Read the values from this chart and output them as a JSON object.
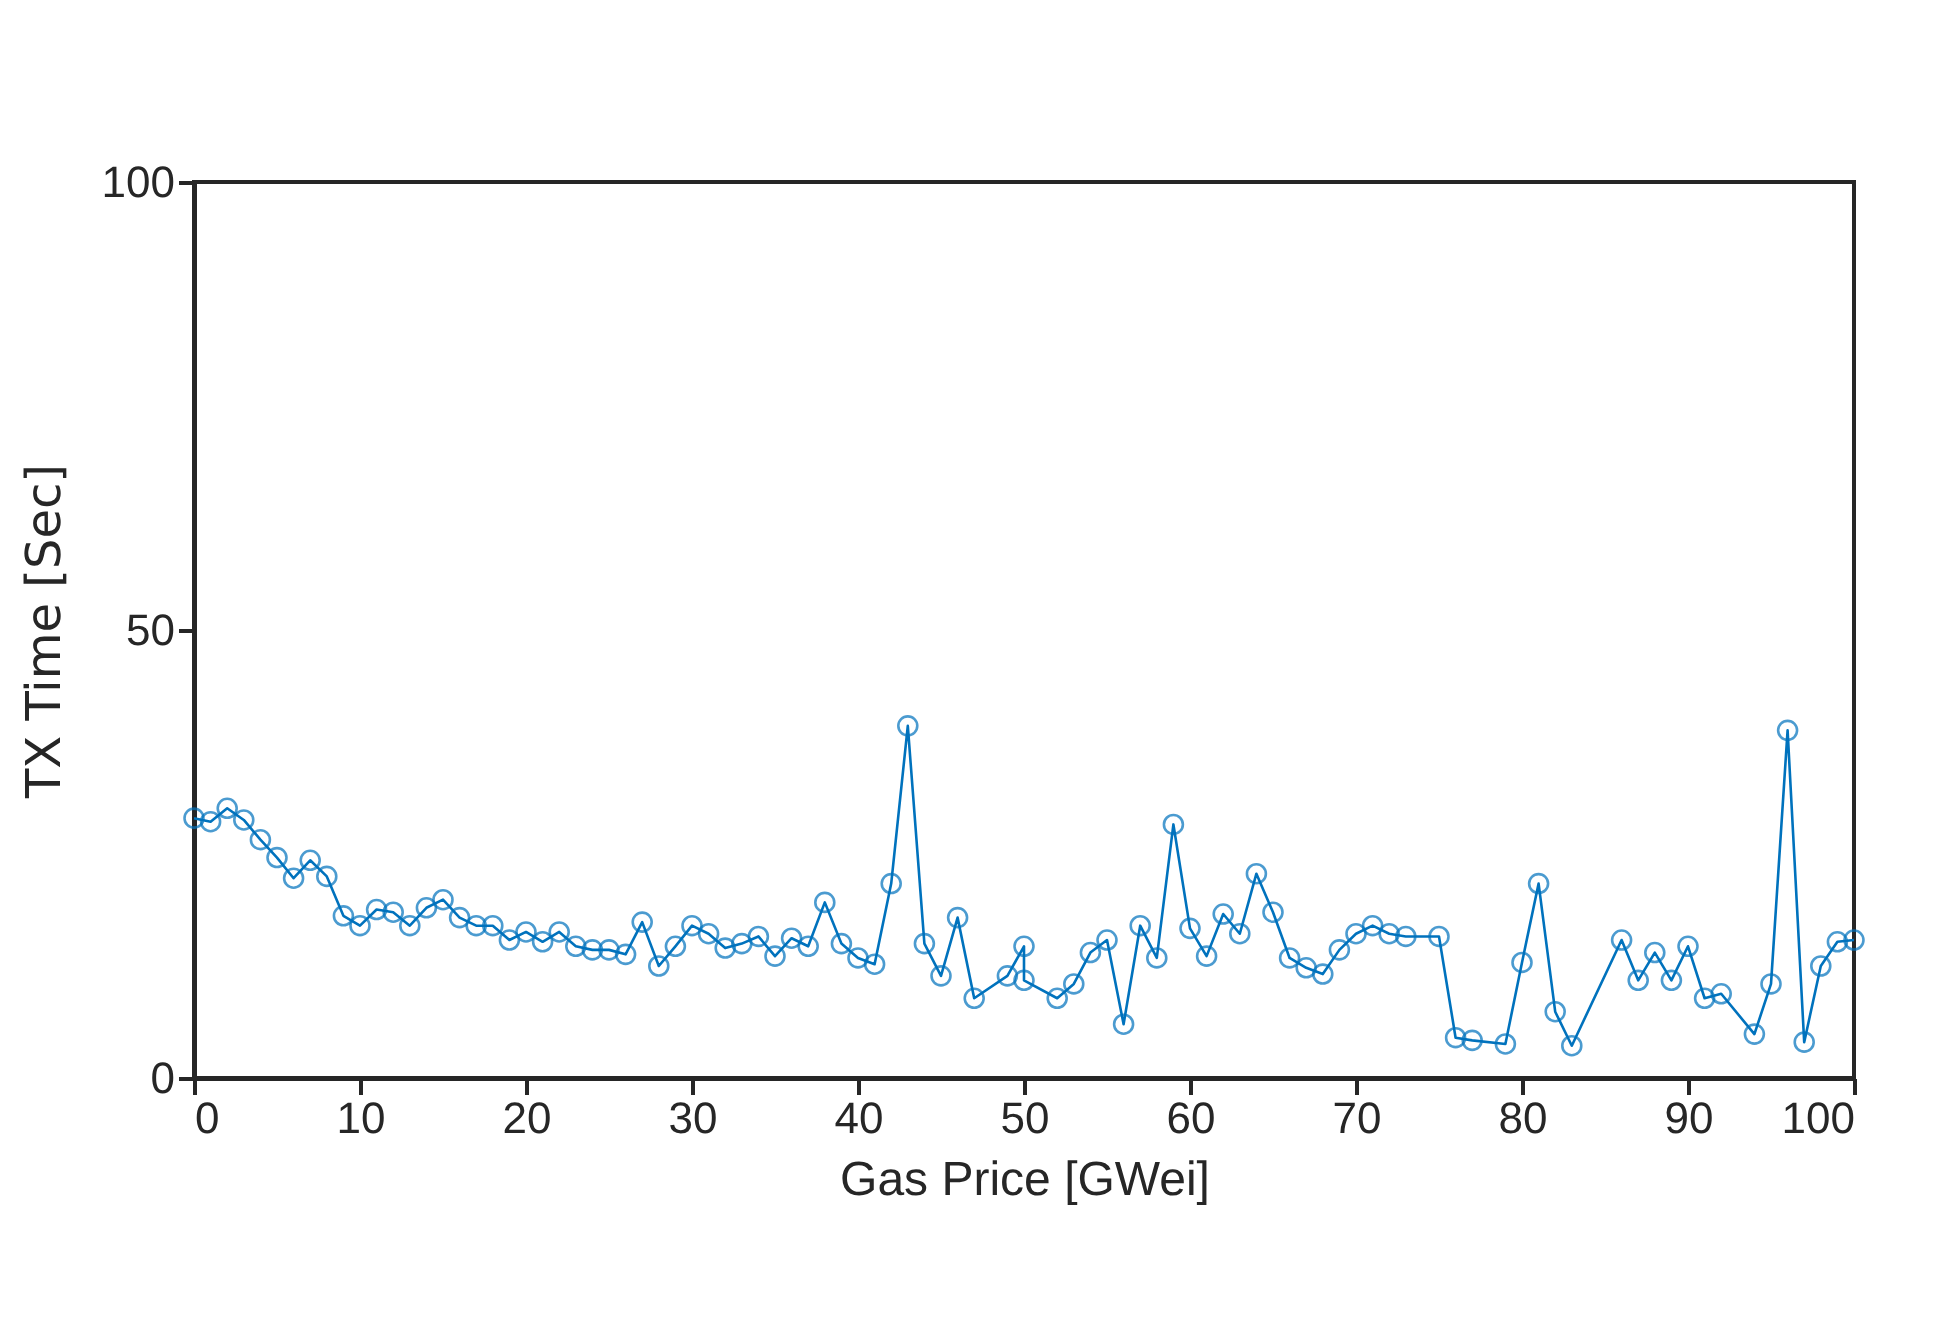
{
  "chart_data": {
    "type": "line",
    "xlabel": "Gas Price [GWei]",
    "ylabel": "TX Time [Sec]",
    "x": [
      0,
      1,
      2,
      3,
      4,
      5,
      6,
      7,
      8,
      9,
      10,
      11,
      12,
      13,
      14,
      15,
      16,
      17,
      18,
      19,
      20,
      21,
      22,
      23,
      24,
      25,
      26,
      27,
      28,
      29,
      30,
      31,
      32,
      33,
      34,
      35,
      36,
      37,
      38,
      39,
      40,
      41,
      42,
      43,
      44,
      45,
      46,
      47,
      49,
      50,
      50,
      52,
      53,
      54,
      55,
      56,
      57,
      58,
      59,
      60,
      61,
      62,
      63,
      64,
      65,
      66,
      67,
      68,
      69,
      70,
      71,
      72,
      73,
      75,
      76,
      77,
      79,
      80,
      81,
      82,
      83,
      86,
      87,
      88,
      89,
      90,
      91,
      92,
      94,
      95,
      96,
      97,
      98,
      99,
      100
    ],
    "series": [
      {
        "color": "#0072bd",
        "values": [
          29,
          28.6,
          30.1,
          28.8,
          26.6,
          24.6,
          22.3,
          24.3,
          22.5,
          18.1,
          17,
          18.8,
          18.5,
          17,
          19,
          19.9,
          17.9,
          17,
          17,
          15.4,
          16.3,
          15.2,
          16.3,
          14.7,
          14.3,
          14.3,
          13.8,
          17.4,
          12.5,
          14.7,
          17,
          16.1,
          14.5,
          15,
          15.8,
          13.6,
          15.6,
          14.7,
          19.6,
          15,
          13.4,
          12.7,
          21.7,
          39.3,
          15,
          11.4,
          17.9,
          8.9,
          11.4,
          14.7,
          10.9,
          8.9,
          10.5,
          14,
          15.4,
          6,
          17,
          13.4,
          28.3,
          16.7,
          13.6,
          18.3,
          16.1,
          22.8,
          18.5,
          13.4,
          12.3,
          11.6,
          14.3,
          16.1,
          17,
          16.1,
          15.8,
          15.8,
          4.5,
          4.2,
          3.8,
          12.9,
          21.7,
          7.4,
          3.6,
          15.4,
          10.9,
          14,
          10.9,
          14.7,
          8.9,
          9.4,
          4.9,
          10.5,
          38.8,
          4,
          12.5,
          15.2,
          15.4
        ]
      }
    ],
    "xlim": [
      0,
      100
    ],
    "xticks": [
      0,
      10,
      20,
      30,
      40,
      50,
      60,
      70,
      80,
      90,
      100
    ],
    "ylim": [
      0,
      100
    ],
    "yticks": [
      0,
      50,
      100
    ],
    "marker": "circle",
    "line_style": "solid",
    "grid": false,
    "legend": false
  }
}
